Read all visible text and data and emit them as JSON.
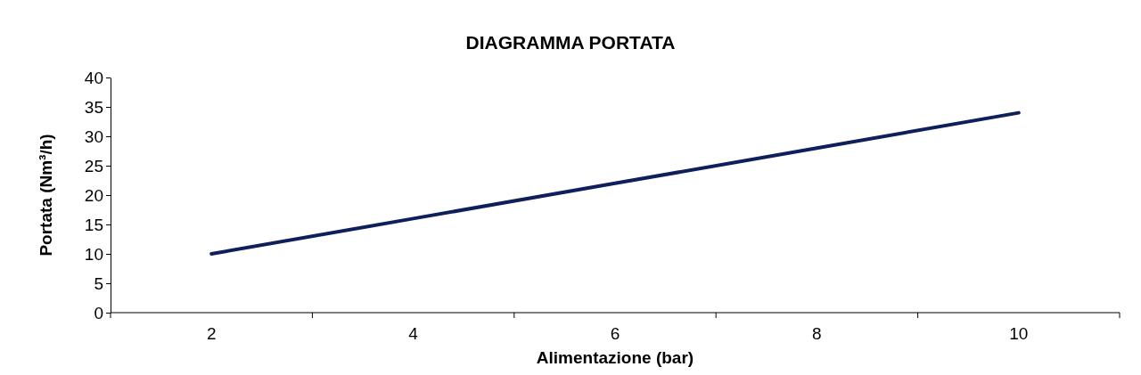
{
  "chart_data": {
    "type": "line",
    "title": "DIAGRAMMA PORTATA",
    "xlabel": "Alimentazione (bar)",
    "ylabel": "Portata (Nm³/h)",
    "categories": [
      "2",
      "4",
      "6",
      "8",
      "10"
    ],
    "series": [
      {
        "color": "#0f1f5c",
        "values": [
          10,
          16,
          22,
          28,
          34
        ]
      }
    ],
    "ylim": [
      0,
      40
    ],
    "yticks": [
      0,
      5,
      10,
      15,
      20,
      25,
      30,
      35,
      40
    ],
    "grid": false,
    "marker": "none",
    "line_style": "solid"
  }
}
